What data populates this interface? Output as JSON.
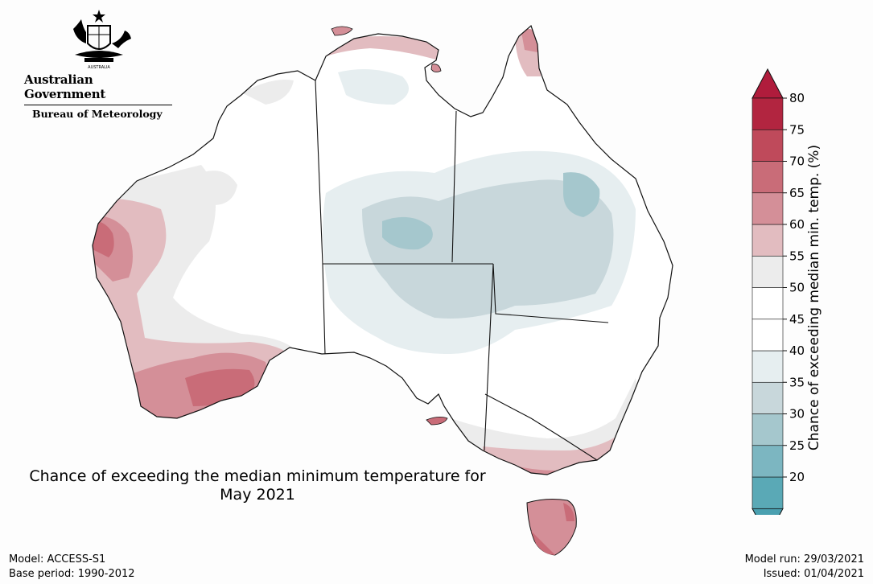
{
  "header": {
    "government": "Australian Government",
    "bureau": "Bureau of Meteorology"
  },
  "caption": {
    "line1": "Chance of exceeding the median minimum temperature for",
    "line2": "May 2021"
  },
  "footer": {
    "model": "Model: ACCESS-S1",
    "base_period": "Base period: 1990-2012",
    "model_run": "Model run: 29/03/2021",
    "issued": "Issued: 01/04/2021"
  },
  "legend": {
    "title": "Chance of exceeding median min. temp. (%)",
    "ticks": [
      "80",
      "75",
      "70",
      "65",
      "60",
      "55",
      "50",
      "45",
      "40",
      "35",
      "30",
      "25",
      "20"
    ],
    "colors": [
      "#5aa9b6",
      "#7cb6c1",
      "#a5c7cd",
      "#c8d7db",
      "#e6eef0",
      "#ffffff",
      "#ffffff",
      "#ececec",
      "#e2bcc0",
      "#d48f98",
      "#c96c78",
      "#bf4a5b",
      "#b22540"
    ],
    "low_arrow_color": "#4aa0b0",
    "high_arrow_color": "#b01c3c"
  },
  "map": {
    "region": "Australia",
    "warm_color": "#c9707c",
    "cool_color": "#c7d8dc"
  }
}
